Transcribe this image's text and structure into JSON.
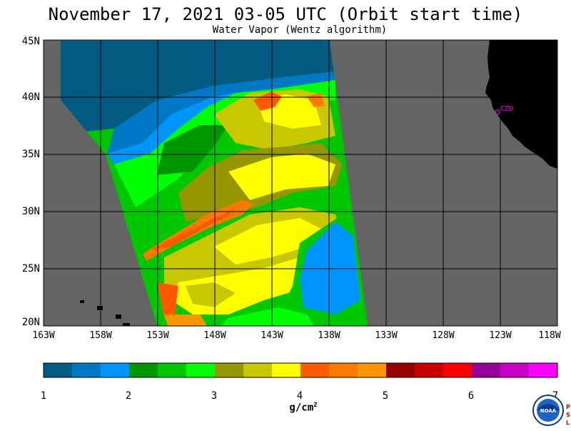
{
  "title": "November 17, 2021  03-05 UTC  (Orbit start time)",
  "subtitle": "Water Vapor (Wentz algorithm)",
  "lat_labels": [
    "45N",
    "40N",
    "35N",
    "30N",
    "25N",
    "20N"
  ],
  "lon_labels": [
    "163W",
    "158W",
    "153W",
    "148W",
    "143W",
    "138W",
    "133W",
    "128W",
    "123W",
    "118W"
  ],
  "station_label": "CZD",
  "colorbar": {
    "colors": [
      "#005a82",
      "#0078c8",
      "#0096ff",
      "#009600",
      "#00c800",
      "#00ff00",
      "#969600",
      "#c8c800",
      "#ffff00",
      "#ff5a00",
      "#ff7800",
      "#ff9600",
      "#960000",
      "#c80000",
      "#ff0000",
      "#960096",
      "#c800c8",
      "#ff00ff"
    ],
    "tick_labels": [
      "1",
      "2",
      "3",
      "4",
      "5",
      "6",
      "7"
    ],
    "units": "g/cm",
    "units_exp": "2"
  },
  "colors": {
    "land": "#000000",
    "nodata": "#646464",
    "grid": "#000000",
    "station": "#ff00ff"
  },
  "logos": {
    "noaa": "NOAA",
    "psl": "PSL"
  }
}
